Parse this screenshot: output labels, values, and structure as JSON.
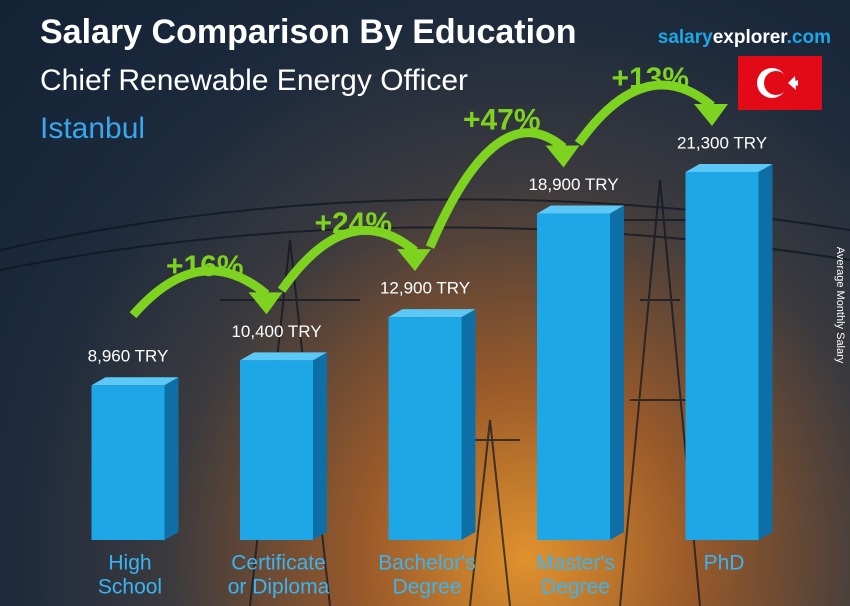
{
  "chart_data": {
    "type": "bar3d",
    "title": "Salary Comparison By Education",
    "subtitle": "Chief Renewable Energy Officer",
    "location": "Istanbul",
    "brand": [
      "salary",
      "explorer",
      ".com"
    ],
    "axis_label": "Average Monthly Salary",
    "categories": [
      [
        "High",
        "School"
      ],
      [
        "Certificate",
        "or Diploma"
      ],
      [
        "Bachelor's",
        "Degree"
      ],
      [
        "Master's",
        "Degree"
      ],
      [
        "PhD"
      ]
    ],
    "values": [
      8960,
      10400,
      12900,
      18900,
      21300
    ],
    "value_labels": [
      "8,960 TRY",
      "10,400 TRY",
      "12,900 TRY",
      "18,900 TRY",
      "21,300 TRY"
    ],
    "annotations": [
      "+16%",
      "+24%",
      "+47%",
      "+13%"
    ],
    "color": "#1ea7e6",
    "annotation_color": "#7ed321"
  }
}
